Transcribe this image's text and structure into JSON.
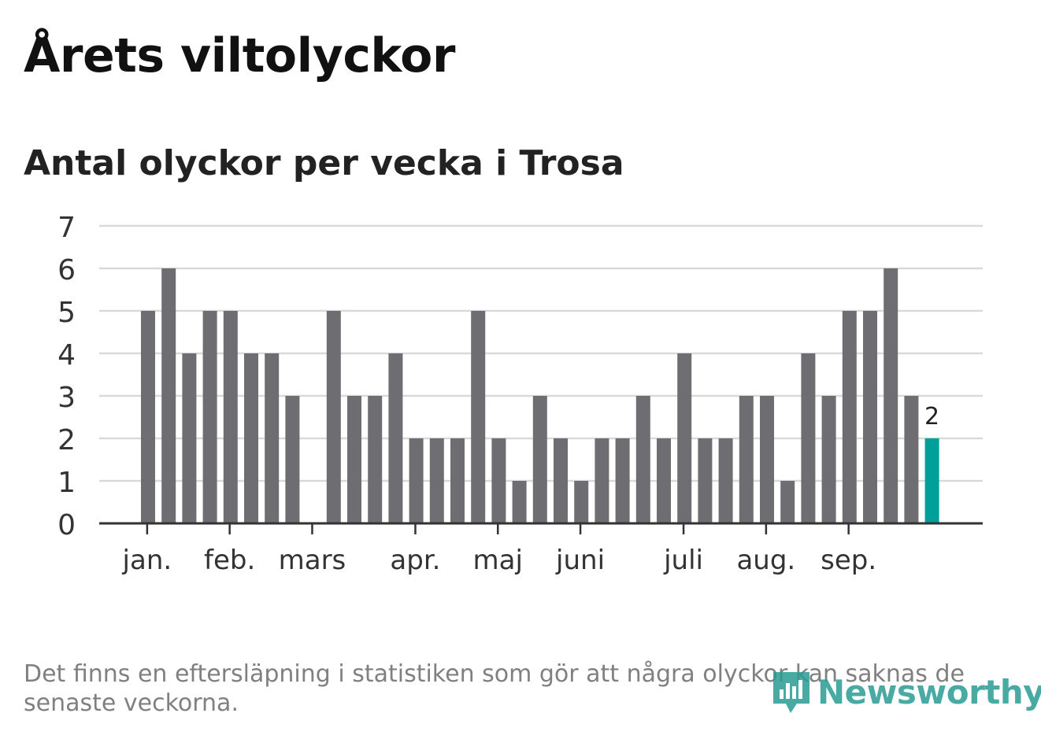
{
  "header": {
    "title": "Årets viltolyckor",
    "subtitle": "Antal olyckor per vecka i Trosa"
  },
  "footer": {
    "note": "Det finns en eftersläpning i statistiken som gör att några olyckor kan saknas de senaste veckorna.",
    "brand": "Newsworthy",
    "brand_icon": "newsworthy-logo-icon"
  },
  "colors": {
    "bar": "#6e6d72",
    "highlight": "#00a09a",
    "grid": "#d9d9d9",
    "axis": "#333333"
  },
  "chart_data": {
    "type": "bar",
    "values": [
      5,
      6,
      4,
      5,
      5,
      4,
      4,
      3,
      0,
      5,
      3,
      3,
      4,
      2,
      2,
      2,
      5,
      2,
      1,
      3,
      2,
      1,
      2,
      2,
      3,
      2,
      4,
      2,
      2,
      3,
      3,
      1,
      4,
      3,
      5,
      5,
      6,
      3,
      2
    ],
    "highlight_index": 38,
    "highlight_label": "2",
    "ylim": [
      0,
      7
    ],
    "yticks": [
      0,
      1,
      2,
      3,
      4,
      5,
      6,
      7
    ],
    "month_labels": [
      {
        "label": "jan.",
        "position": 0.3
      },
      {
        "label": "feb.",
        "position": 4.3
      },
      {
        "label": "mars",
        "position": 8.3
      },
      {
        "label": "apr.",
        "position": 13.3
      },
      {
        "label": "maj",
        "position": 17.3
      },
      {
        "label": "juni",
        "position": 21.3
      },
      {
        "label": "juli",
        "position": 26.3
      },
      {
        "label": "aug.",
        "position": 30.3
      },
      {
        "label": "sep.",
        "position": 34.3
      }
    ],
    "grid": true,
    "legend": "none"
  }
}
